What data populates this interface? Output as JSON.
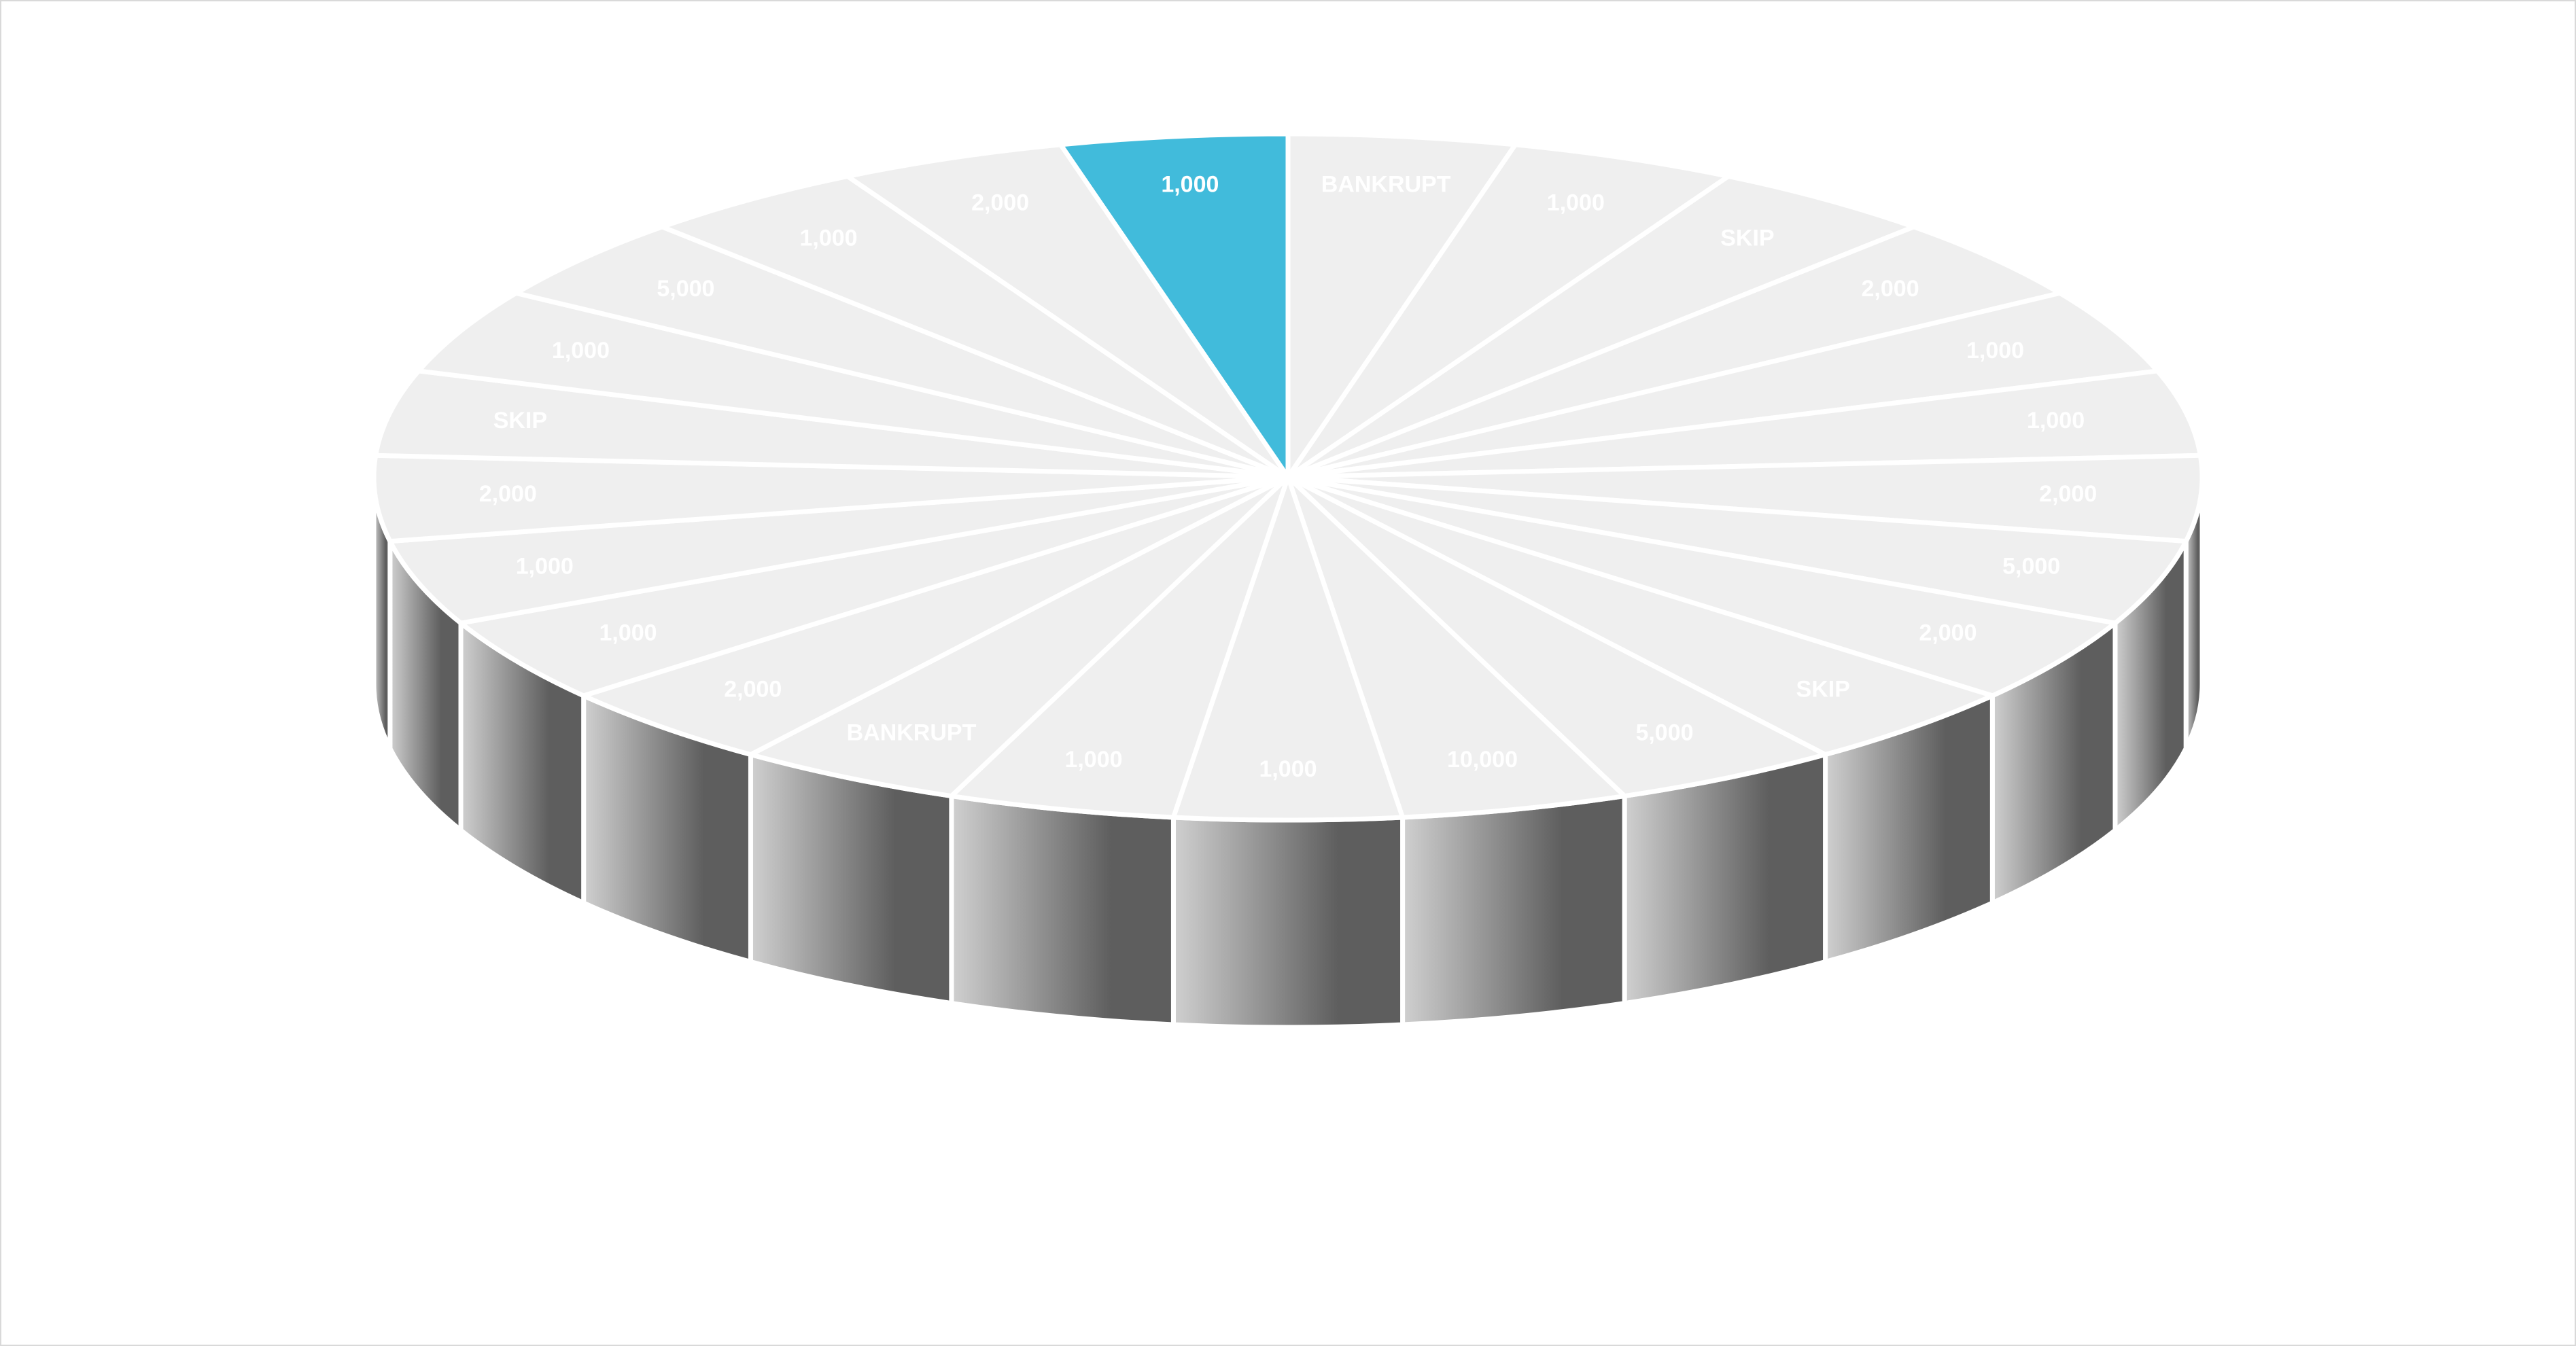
{
  "wheel": {
    "segments": [
      {
        "label": "BANKRUPT"
      },
      {
        "label": "1,000"
      },
      {
        "label": "SKIP"
      },
      {
        "label": "2,000"
      },
      {
        "label": "1,000"
      },
      {
        "label": "1,000"
      },
      {
        "label": "2,000"
      },
      {
        "label": "5,000"
      },
      {
        "label": "2,000"
      },
      {
        "label": "SKIP"
      },
      {
        "label": "5,000"
      },
      {
        "label": "10,000"
      },
      {
        "label": "1,000"
      },
      {
        "label": "1,000"
      },
      {
        "label": "BANKRUPT"
      },
      {
        "label": "2,000"
      },
      {
        "label": "1,000"
      },
      {
        "label": "1,000"
      },
      {
        "label": "2,000"
      },
      {
        "label": "SKIP"
      },
      {
        "label": "1,000"
      },
      {
        "label": "5,000"
      },
      {
        "label": "1,000"
      },
      {
        "label": "2,000"
      },
      {
        "label": "1,000",
        "highlighted": true
      }
    ],
    "colors": {
      "top": "#efefef",
      "divider": "#ffffff",
      "highlight": "#41bbdb",
      "side_light": "#d0d0d0",
      "side_dark": "#5e5e5e"
    }
  }
}
